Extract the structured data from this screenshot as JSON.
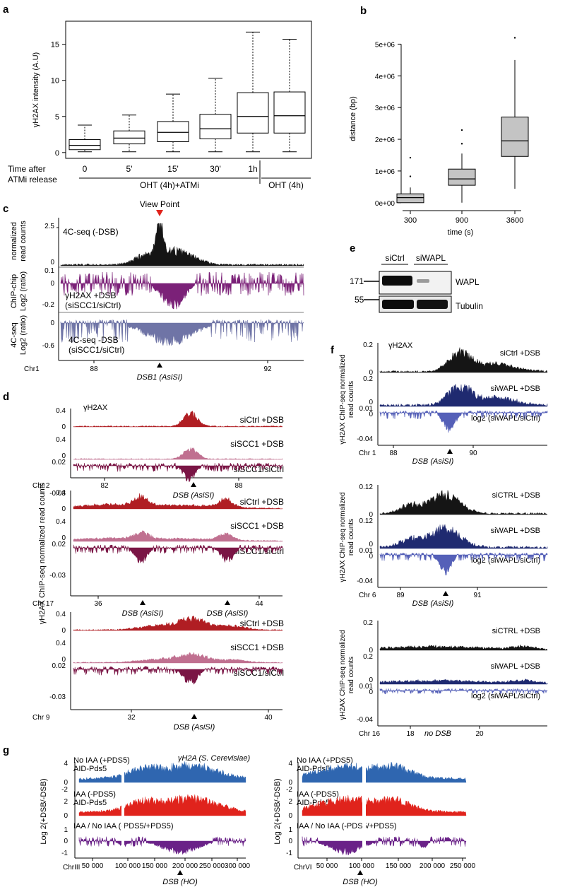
{
  "colors": {
    "black": "#151515",
    "purple": "#7b2178",
    "slate": "#6f74a6",
    "darkred": "#b01e23",
    "pink": "#c07090",
    "maroon": "#7a1545",
    "navy": "#1f2a70",
    "indigo": "#5560b8",
    "blue": "#2f66b0",
    "red": "#e0231c",
    "violet": "#6a2288",
    "viewpoint": "#e0231c",
    "boxfill": "#c4c4c4"
  },
  "panel_labels": {
    "a": "a",
    "b": "b",
    "c": "c",
    "d": "d",
    "e": "e",
    "f": "f",
    "g": "g"
  },
  "chart_data": [
    {
      "id": "a",
      "type": "box",
      "ylabel": "γH2AX intensity (A.U)",
      "yticks": [
        "0",
        "5",
        "10",
        "15"
      ],
      "ylim": [
        -0.8,
        18.2
      ],
      "categories": [
        "0",
        "5'",
        "15'",
        "30'",
        "1h",
        ""
      ],
      "boxes": [
        {
          "min": 0.1,
          "q1": 0.4,
          "median": 1.0,
          "q3": 1.8,
          "max": 3.8
        },
        {
          "min": 0.1,
          "q1": 1.2,
          "median": 2.0,
          "q3": 3.0,
          "max": 5.2
        },
        {
          "min": 0.1,
          "q1": 1.5,
          "median": 2.8,
          "q3": 4.3,
          "max": 8.1
        },
        {
          "min": 0.1,
          "q1": 1.9,
          "median": 3.3,
          "q3": 5.3,
          "max": 10.3
        },
        {
          "min": 0.1,
          "q1": 2.7,
          "median": 5.0,
          "q3": 8.3,
          "max": 16.7
        },
        {
          "min": 0.1,
          "q1": 2.7,
          "median": 5.1,
          "q3": 8.4,
          "max": 15.7
        }
      ],
      "row_label_1": "Time after",
      "row_label_2": "ATMi  release",
      "group1": "OHT (4h)+ATMi",
      "group2": "OHT (4h)"
    },
    {
      "id": "b",
      "type": "box",
      "xlabel": "time (s)",
      "ylabel": "distance (bp)",
      "yticks": [
        "0e+00",
        "1e+06",
        "2e+06",
        "3e+06",
        "4e+06",
        "5e+06"
      ],
      "ylim": [
        -250000,
        5500000
      ],
      "categories": [
        "300",
        "900",
        "3600"
      ],
      "boxes": [
        {
          "min": 0,
          "q1": 0,
          "median": 160000,
          "q3": 280000,
          "max": 480000,
          "outliers": [
            830000,
            1420000
          ]
        },
        {
          "min": 0,
          "q1": 550000,
          "median": 750000,
          "q3": 1060000,
          "max": 1550000,
          "outliers": [
            1860000,
            2290000
          ]
        },
        {
          "min": 440000,
          "q1": 1460000,
          "median": 1950000,
          "q3": 2700000,
          "max": 4500000,
          "outliers": [
            5200000
          ]
        }
      ]
    }
  ],
  "panel_c": {
    "view_point": "View Point",
    "track1_label": "4C-seq (-DSB)",
    "track1_max": "2.5",
    "track1_zero": "0",
    "ylab1_1": "normalized",
    "ylab1_2": "read counts",
    "track2_line1": "γH2AX +DSB",
    "track2_line2": "(siSCC1/siCtrl)",
    "t2_top": "0.1",
    "t2_zero": "0",
    "t2_bot": "-0.2",
    "ylab2_1": "ChIP-chip",
    "ylab2_2": "Log2 (ratio)",
    "track3_line1": "4C-seq -DSB",
    "track3_line2": "(siSCC1/siCtrl)",
    "t3_zero": "0",
    "t3_bot": "-0.6",
    "ylab3_1": "4C-seq",
    "ylab3_2": "Log2 (ratio)",
    "chr": "Chr1",
    "x1": "88",
    "x2": "92",
    "dsb": "DSB1 (AsiSI)"
  },
  "panel_d": {
    "ylabel": "γH2AX ChIP-seq normalized read counts",
    "gh2ax": "γH2AX",
    "lab_ctrl": "siCtrl +DSB",
    "lab_scc": "siSCC1 +DSB",
    "lab_ratio": "siSCC1/siCtrl",
    "v04": "0.4",
    "v0": "0",
    "v002": "0.02",
    "vm003": "-0.03",
    "blocks": [
      {
        "chr": "Chr 2",
        "t1": "82",
        "t2": "88",
        "dsb": "DSB (AsiSI)"
      },
      {
        "chr": "Chr 17",
        "t1": "36",
        "t2": "44",
        "dsb": "DSB (AsiSI)",
        "dsb2": "DSB (AsiSI)"
      },
      {
        "chr": "Chr 9",
        "t1": "32",
        "t2": "40",
        "dsb": "DSB (AsiSI)"
      }
    ]
  },
  "panel_e": {
    "col1": "siCtrl",
    "col2": "siWAPL",
    "mw1": "171",
    "mw2": "55",
    "band1": "WAPL",
    "band2": "Tubulin"
  },
  "panel_f": {
    "ylabel_1": "γH2AX ChIP-seq normalized",
    "ylabel_2": "read counts",
    "gh2ax": "γH2AX",
    "lab_ratio": "log2 (siWAPL/siCtrl)",
    "vm004": "-0.04",
    "v001": "0.01",
    "v0": "0",
    "blocks": [
      {
        "ctrl": "siCtrl +DSB",
        "wapl": "siWAPL +DSB",
        "max": "0.2",
        "chr": "Chr 1",
        "t1": "88",
        "t2": "90",
        "note": "DSB (AsiSI)"
      },
      {
        "ctrl": "siCTRL +DSB",
        "wapl": "siWAPL +DSB",
        "max": "0.12",
        "chr": "Chr 6",
        "t1": "89",
        "t2": "91",
        "note": "DSB (AsiSI)"
      },
      {
        "ctrl": "siCTRL +DSB",
        "wapl": "siWAPL +DSB",
        "max": "0.2",
        "chr": "Chr 16",
        "t1": "18",
        "t2": "20",
        "note": "no DSB"
      }
    ]
  },
  "panel_g": {
    "title": "γH2A (S. Cerevisiae)",
    "ylabel": "Log 2(+DSB/-DSB)",
    "l1a": "No IAA (+PDS5)",
    "l1b": "AID-Pds5",
    "l2a": "IAA (-PDS5)",
    "l2b": "AID-Pds5",
    "l3": "IAA / No IAA (-PDS5/+PDS5)",
    "v4": "4",
    "v0": "0",
    "vm2": "-2",
    "v2": "2",
    "v1": "1",
    "vm1": "-1",
    "left": {
      "chr": "ChrIII",
      "ticks": [
        "50 000",
        "100 000",
        "150 000",
        "200 000",
        "250 000",
        "300 000"
      ],
      "dsb": "DSB (HO)"
    },
    "right": {
      "chr": "ChrVI",
      "ticks": [
        "50 000",
        "100 000",
        "150 000",
        "200 000",
        "250 000"
      ],
      "dsb": "DSB (HO)"
    }
  }
}
